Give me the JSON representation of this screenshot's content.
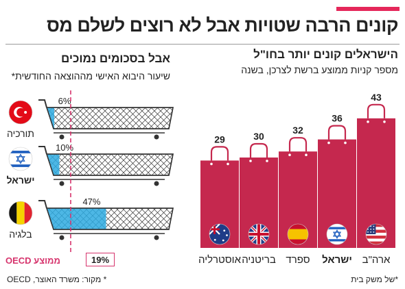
{
  "title": "קונים הרבה שטויות אבל לא רוצים לשלם מס",
  "colors": {
    "accent": "#e5275a",
    "bar": "#c5284e",
    "cart_fill": "#2eaae1",
    "oecd_line": "#d6336c"
  },
  "right_panel": {
    "title": "הישראלים קונים יותר בחו\"ל",
    "subtitle": "מספר קניות ממוצע ברשת לצרכן, בשנה"
  },
  "left_panel": {
    "title": "אבל בסכומים נמוכים",
    "subtitle": "שיעור היבוא האישי מההוצאה החודשית*"
  },
  "oecd": {
    "label": "ממוצע OECD",
    "value": "19%"
  },
  "footer": {
    "note": "*של משק בית",
    "source": "* מקור: משרד האוצר, OECD"
  },
  "chart_data": [
    {
      "type": "bar",
      "categories": [
        "ארה\"ב",
        "ישראל",
        "ספרד",
        "בריטניה",
        "אוסטרליה"
      ],
      "values": [
        43,
        36,
        32,
        30,
        29
      ],
      "value_labels": [
        "43",
        "36",
        "32",
        "30",
        "29"
      ],
      "flags": [
        "us-flag-icon",
        "israel-flag-icon",
        "spain-flag-icon",
        "uk-flag-icon",
        "australia-flag-icon"
      ],
      "highlight": "ישראל"
    },
    {
      "type": "bar",
      "categories": [
        "תורכיה",
        "ישראל",
        "בלגיה"
      ],
      "values": [
        6,
        10,
        47
      ],
      "value_labels": [
        "6%",
        "10%",
        "47%"
      ],
      "flags": [
        "turkey-flag-icon",
        "israel-flag-icon",
        "belgium-flag-icon"
      ],
      "reference_line": 19
    }
  ]
}
